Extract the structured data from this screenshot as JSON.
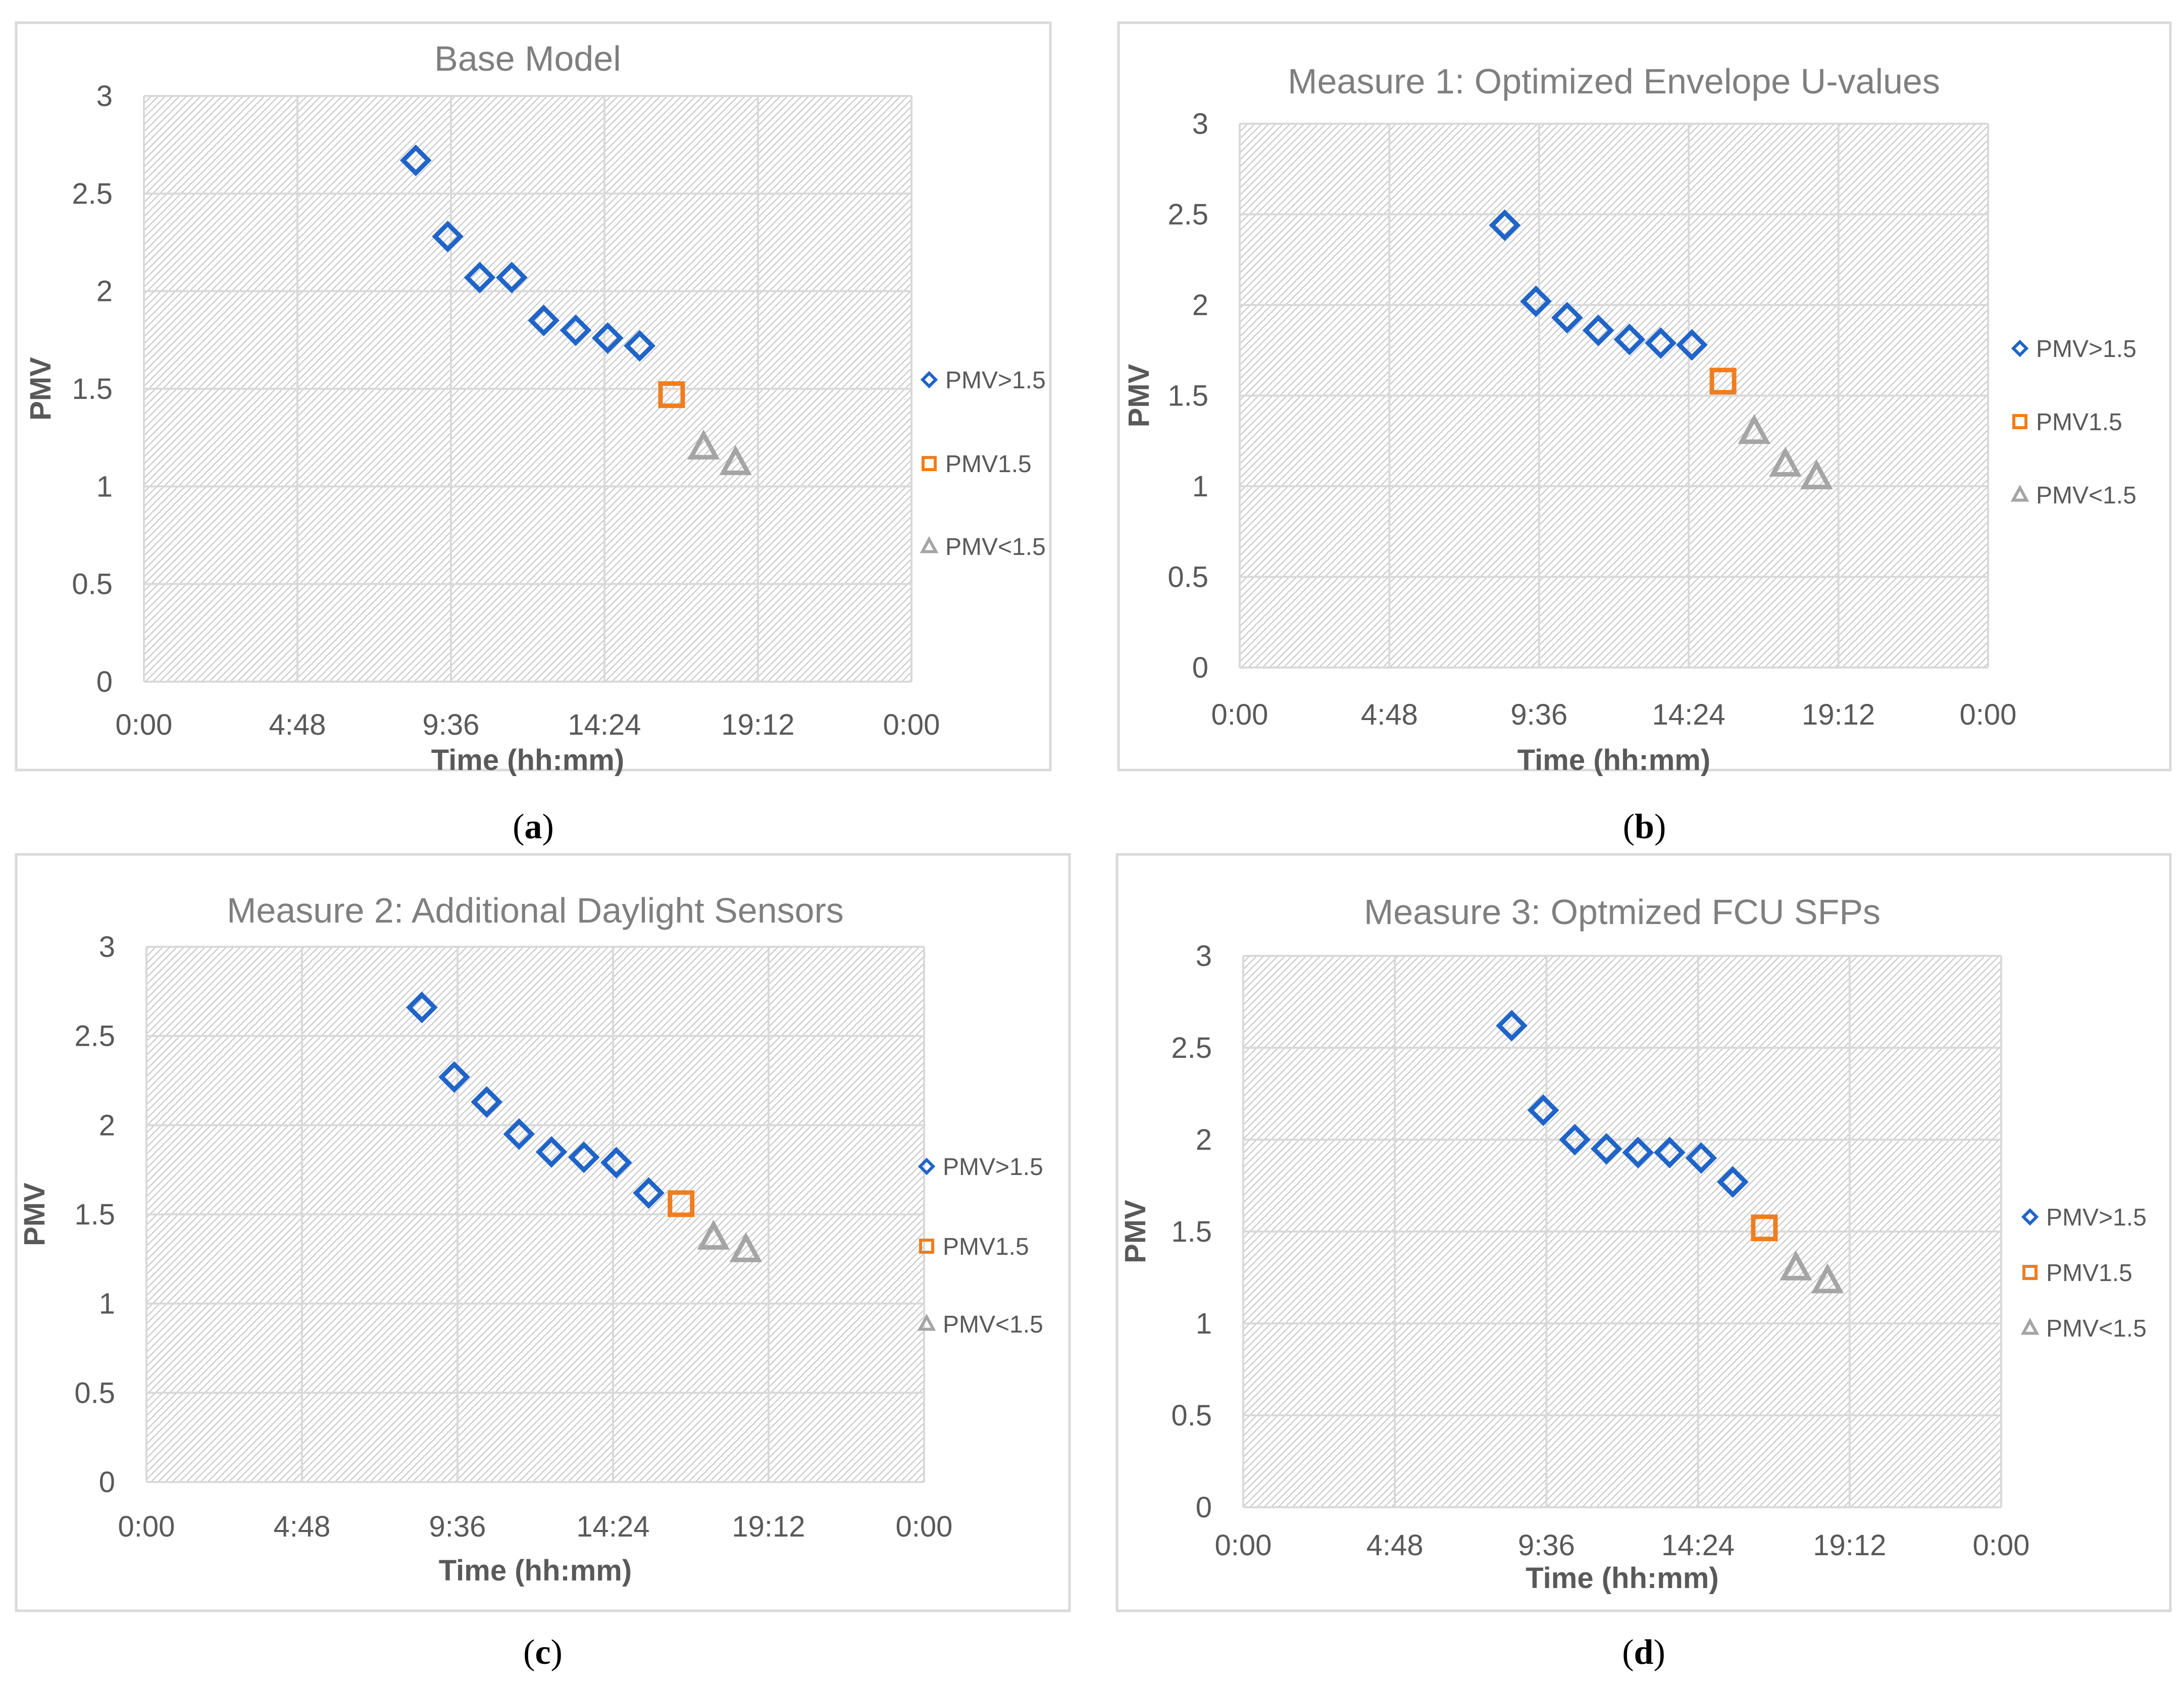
{
  "chart_data": [
    {
      "panel": "a",
      "type": "scatter",
      "title": "Base Model",
      "xlabel": "Time (hh:mm)",
      "ylabel": "PMV",
      "xlim": [
        0,
        24
      ],
      "ylim": [
        0,
        3
      ],
      "xtick_labels": [
        "0:00",
        "4:48",
        "9:36",
        "14:24",
        "19:12",
        "0:00"
      ],
      "ytick_labels": [
        "0",
        "0.5",
        "1",
        "1.5",
        "2",
        "2.5",
        "3"
      ],
      "series": [
        {
          "name": "PMV>1.5",
          "marker": "diamond",
          "color": "#1f64c8",
          "x": [
            8.5,
            9.5,
            10.5,
            11.5,
            12.5,
            13.5,
            14.5,
            15.5
          ],
          "y": [
            2.67,
            2.28,
            2.07,
            2.07,
            1.85,
            1.8,
            1.76,
            1.72
          ]
        },
        {
          "name": "PMV1.5",
          "marker": "square",
          "color": "#f07d1e",
          "x": [
            16.5
          ],
          "y": [
            1.47
          ]
        },
        {
          "name": "PMV<1.5",
          "marker": "triangle",
          "color": "#a5a5a5",
          "x": [
            17.5,
            18.5
          ],
          "y": [
            1.2,
            1.12
          ]
        }
      ]
    },
    {
      "panel": "b",
      "type": "scatter",
      "title": "Measure 1: Optimized Envelope U-values",
      "xlabel": "Time (hh:mm)",
      "ylabel": "PMV",
      "xlim": [
        0,
        24
      ],
      "ylim": [
        0,
        3
      ],
      "xtick_labels": [
        "0:00",
        "4:48",
        "9:36",
        "14:24",
        "19:12",
        "0:00"
      ],
      "ytick_labels": [
        "0",
        "0.5",
        "1",
        "1.5",
        "2",
        "2.5",
        "3"
      ],
      "series": [
        {
          "name": "PMV>1.5",
          "marker": "diamond",
          "color": "#1f64c8",
          "x": [
            8.5,
            9.5,
            10.5,
            11.5,
            12.5,
            13.5,
            14.5
          ],
          "y": [
            2.44,
            2.02,
            1.93,
            1.86,
            1.81,
            1.79,
            1.78
          ]
        },
        {
          "name": "PMV1.5",
          "marker": "square",
          "color": "#f07d1e",
          "x": [
            15.5
          ],
          "y": [
            1.58
          ]
        },
        {
          "name": "PMV<1.5",
          "marker": "triangle",
          "color": "#a5a5a5",
          "x": [
            16.5,
            17.5,
            18.5
          ],
          "y": [
            1.3,
            1.12,
            1.05
          ]
        }
      ]
    },
    {
      "panel": "c",
      "type": "scatter",
      "title": "Measure 2: Additional Daylight Sensors",
      "xlabel": "Time (hh:mm)",
      "ylabel": "PMV",
      "xlim": [
        0,
        24
      ],
      "ylim": [
        0,
        3
      ],
      "xtick_labels": [
        "0:00",
        "4:48",
        "9:36",
        "14:24",
        "19:12",
        "0:00"
      ],
      "ytick_labels": [
        "0",
        "0.5",
        "1",
        "1.5",
        "2",
        "2.5",
        "3"
      ],
      "series": [
        {
          "name": "PMV>1.5",
          "marker": "diamond",
          "color": "#1f64c8",
          "x": [
            8.5,
            9.5,
            10.5,
            11.5,
            12.5,
            13.5,
            14.5,
            15.5
          ],
          "y": [
            2.66,
            2.27,
            2.13,
            1.95,
            1.85,
            1.82,
            1.79,
            1.62
          ]
        },
        {
          "name": "PMV1.5",
          "marker": "square",
          "color": "#f07d1e",
          "x": [
            16.5
          ],
          "y": [
            1.56
          ]
        },
        {
          "name": "PMV<1.5",
          "marker": "triangle",
          "color": "#a5a5a5",
          "x": [
            17.5,
            18.5
          ],
          "y": [
            1.37,
            1.3
          ]
        }
      ]
    },
    {
      "panel": "d",
      "type": "scatter",
      "title": "Measure 3: Optmized FCU SFPs",
      "xlabel": "Time (hh:mm)",
      "ylabel": "PMV",
      "xlim": [
        0,
        24
      ],
      "ylim": [
        0,
        3
      ],
      "xtick_labels": [
        "0:00",
        "4:48",
        "9:36",
        "14:24",
        "19:12",
        "0:00"
      ],
      "ytick_labels": [
        "0",
        "0.5",
        "1",
        "1.5",
        "2",
        "2.5",
        "3"
      ],
      "series": [
        {
          "name": "PMV>1.5",
          "marker": "diamond",
          "color": "#1f64c8",
          "x": [
            8.5,
            9.5,
            10.5,
            11.5,
            12.5,
            13.5,
            14.5,
            15.5
          ],
          "y": [
            2.62,
            2.16,
            2.0,
            1.95,
            1.93,
            1.93,
            1.9,
            1.77
          ]
        },
        {
          "name": "PMV1.5",
          "marker": "square",
          "color": "#f07d1e",
          "x": [
            16.5
          ],
          "y": [
            1.52
          ]
        },
        {
          "name": "PMV<1.5",
          "marker": "triangle",
          "color": "#a5a5a5",
          "x": [
            17.5,
            18.5
          ],
          "y": [
            1.3,
            1.23
          ]
        }
      ]
    }
  ]
}
